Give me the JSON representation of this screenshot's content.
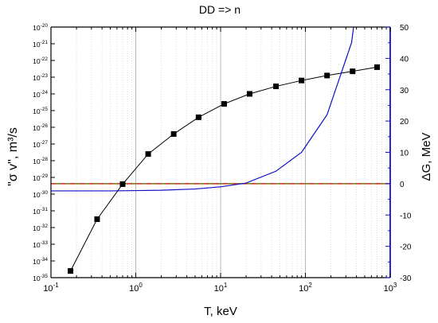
{
  "chart_data": {
    "type": "line",
    "title": "DD => n",
    "xlabel": "T, keV",
    "ylabel_left": "\"σ v\", m³/s",
    "ylabel_right": "ΔG, MeV",
    "x_scale": "log",
    "y_left_scale": "log",
    "xlim": [
      0.1,
      1000
    ],
    "ylim_left": [
      1e-35,
      1e-20
    ],
    "ylim_right": [
      -30,
      50
    ],
    "grid": "vertical dotted minor, vertical solid major",
    "x_ticks": [
      {
        "value": 0.1,
        "base": "10",
        "exp": "-1"
      },
      {
        "value": 1,
        "base": "10",
        "exp": "0"
      },
      {
        "value": 10,
        "base": "10",
        "exp": "1"
      },
      {
        "value": 100,
        "base": "10",
        "exp": "2"
      },
      {
        "value": 1000,
        "base": "10",
        "exp": "3"
      }
    ],
    "y_left_ticks": [
      {
        "exp_value": -35,
        "base": "10",
        "exp": "-35"
      },
      {
        "exp_value": -34,
        "base": "10",
        "exp": "-34"
      },
      {
        "exp_value": -33,
        "base": "10",
        "exp": "-33"
      },
      {
        "exp_value": -32,
        "base": "10",
        "exp": "-32"
      },
      {
        "exp_value": -31,
        "base": "10",
        "exp": "-31"
      },
      {
        "exp_value": -30,
        "base": "10",
        "exp": "-30"
      },
      {
        "exp_value": -29,
        "base": "10",
        "exp": "-29"
      },
      {
        "exp_value": -28,
        "base": "10",
        "exp": "-28"
      },
      {
        "exp_value": -27,
        "base": "10",
        "exp": "-27"
      },
      {
        "exp_value": -26,
        "base": "10",
        "exp": "-26"
      },
      {
        "exp_value": -25,
        "base": "10",
        "exp": "-25"
      },
      {
        "exp_value": -24,
        "base": "10",
        "exp": "-24"
      },
      {
        "exp_value": -23,
        "base": "10",
        "exp": "-23"
      },
      {
        "exp_value": -22,
        "base": "10",
        "exp": "-22"
      },
      {
        "exp_value": -21,
        "base": "10",
        "exp": "-21"
      },
      {
        "exp_value": -20,
        "base": "10",
        "exp": "-20"
      }
    ],
    "y_right_ticks": [
      "50",
      "40",
      "30",
      "20",
      "10",
      "0",
      "-10",
      "-20",
      "-30"
    ],
    "series": [
      {
        "axis": "left",
        "color": "#000000",
        "marker": "square",
        "x": [
          0.17,
          0.35,
          0.7,
          1.4,
          2.8,
          5.5,
          11,
          22,
          45,
          90,
          180,
          360,
          700
        ],
        "log10_y": [
          -34.6,
          -31.5,
          -29.4,
          -27.6,
          -26.4,
          -25.4,
          -24.6,
          -24.0,
          -23.55,
          -23.2,
          -22.9,
          -22.65,
          -22.4
        ]
      },
      {
        "axis": "right",
        "color": "#1010c8",
        "marker": "none",
        "x": [
          0.1,
          0.5,
          1,
          2,
          5,
          10,
          20,
          45,
          90,
          180,
          350,
          370
        ],
        "y": [
          -2.3,
          -2.3,
          -2.2,
          -2.1,
          -1.7,
          -1.0,
          0.2,
          4.0,
          10.0,
          22.0,
          45.0,
          50.0
        ]
      }
    ],
    "reference_lines": [
      {
        "axis": "right",
        "y": 0,
        "style": "dashed",
        "colors": [
          "#cc2222",
          "#707000"
        ]
      }
    ]
  }
}
